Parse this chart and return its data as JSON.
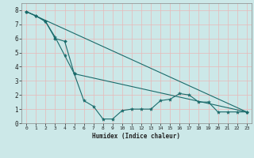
{
  "title": "",
  "xlabel": "Humidex (Indice chaleur)",
  "ylabel": "",
  "bg_color": "#cce8e8",
  "grid_color": "#e8b8b8",
  "line_color": "#1a6b6b",
  "xlim": [
    -0.5,
    23.5
  ],
  "ylim": [
    0,
    8.5
  ],
  "xticks": [
    0,
    1,
    2,
    3,
    4,
    5,
    6,
    7,
    8,
    9,
    10,
    11,
    12,
    13,
    14,
    15,
    16,
    17,
    18,
    19,
    20,
    21,
    22,
    23
  ],
  "yticks": [
    0,
    1,
    2,
    3,
    4,
    5,
    6,
    7,
    8
  ],
  "series1_x": [
    0,
    1,
    2,
    3,
    4,
    5,
    6,
    7,
    8,
    9,
    10,
    11,
    12,
    13,
    14,
    15,
    16,
    17,
    18,
    19,
    20,
    21,
    22,
    23
  ],
  "series1_y": [
    7.9,
    7.6,
    7.2,
    6.1,
    4.8,
    3.5,
    1.6,
    1.2,
    0.3,
    0.3,
    0.9,
    1.0,
    1.0,
    1.0,
    1.6,
    1.7,
    2.1,
    2.0,
    1.5,
    1.5,
    0.8,
    0.8,
    0.8,
    0.8
  ],
  "series2_x": [
    0,
    1,
    2,
    3,
    4,
    5,
    23
  ],
  "series2_y": [
    7.9,
    7.6,
    7.2,
    6.0,
    5.8,
    3.5,
    0.8
  ],
  "series3_x": [
    0,
    23
  ],
  "series3_y": [
    7.9,
    0.8
  ]
}
